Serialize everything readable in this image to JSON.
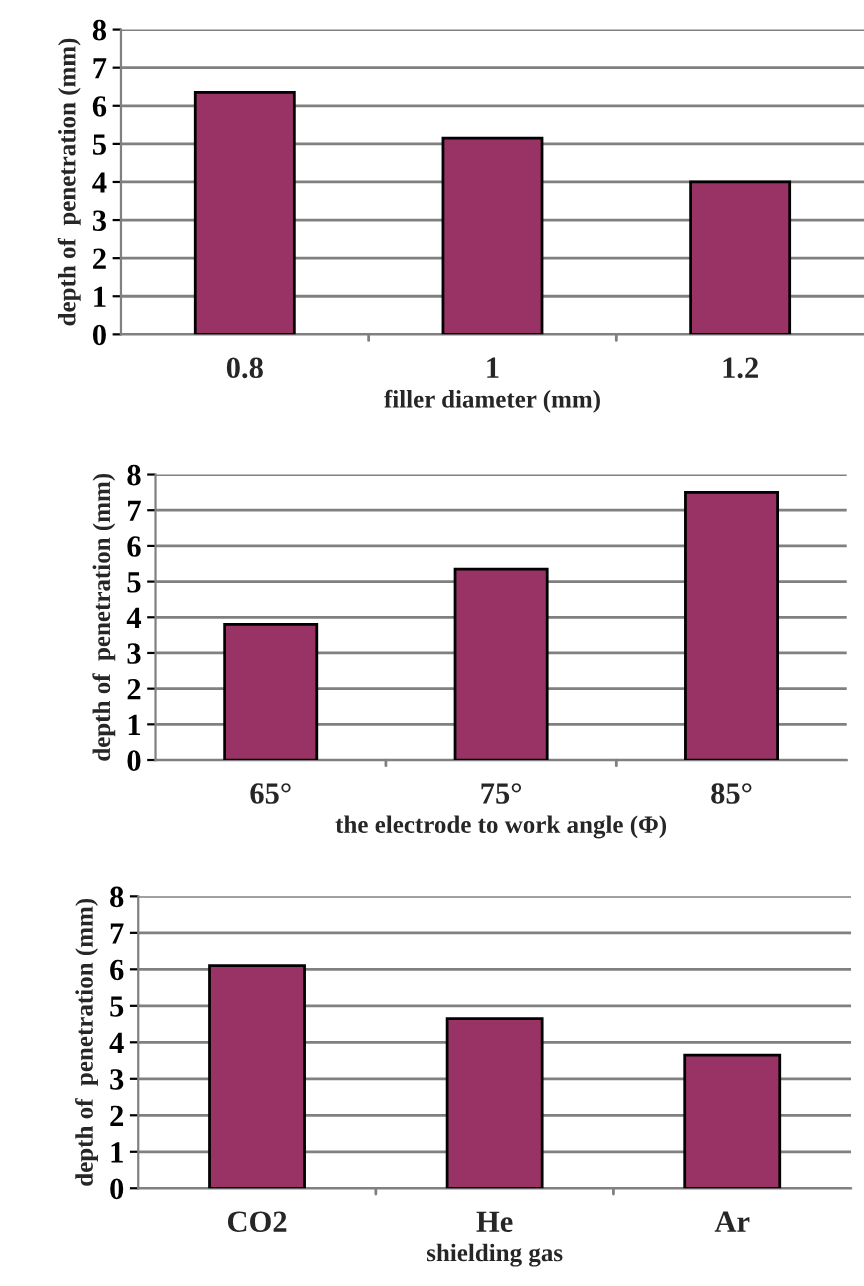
{
  "chart_data": [
    {
      "type": "bar",
      "categories": [
        "0.8",
        "1",
        "1.2"
      ],
      "values": [
        6.35,
        5.15,
        4.0
      ],
      "color": "#993366",
      "xlabel": "filler diameter (mm)",
      "ylabel": "depth of  penetration (mm)",
      "ylim": [
        0,
        8
      ],
      "yticks": [
        0,
        1,
        2,
        3,
        4,
        5,
        6,
        7,
        8
      ],
      "grid": "y"
    },
    {
      "type": "bar",
      "categories": [
        "65°",
        "75°",
        "85°"
      ],
      "values": [
        3.8,
        5.35,
        7.5
      ],
      "color": "#993366",
      "xlabel": "the electrode to work angle (Φ)",
      "ylabel": "depth of  penetration (mm)",
      "ylim": [
        0,
        8
      ],
      "yticks": [
        0,
        1,
        2,
        3,
        4,
        5,
        6,
        7,
        8
      ],
      "grid": "y"
    },
    {
      "type": "bar",
      "categories": [
        "CO2",
        "He",
        "Ar"
      ],
      "values": [
        6.1,
        4.65,
        3.65
      ],
      "color": "#993366",
      "xlabel": "shielding gas",
      "ylabel": "depth of  penetration (mm)",
      "ylim": [
        0,
        8
      ],
      "yticks": [
        0,
        1,
        2,
        3,
        4,
        5,
        6,
        7,
        8
      ],
      "grid": "y"
    }
  ]
}
